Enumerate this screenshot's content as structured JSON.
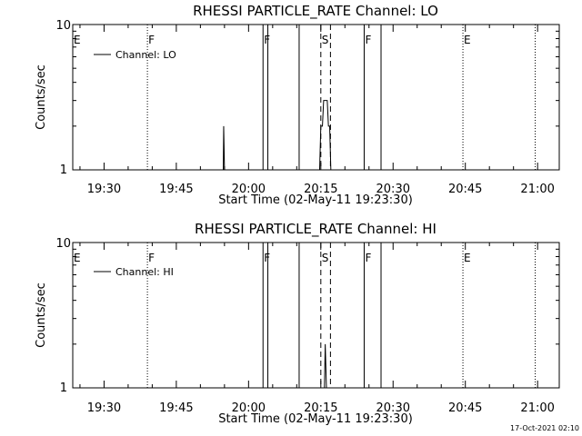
{
  "footer_timestamp": "17-Oct-2021 02:10",
  "chart_data": [
    {
      "type": "line",
      "title": "RHESSI PARTICLE_RATE Channel: LO",
      "xlabel": "Start Time (02-May-11 19:23:30)",
      "ylabel": "Counts/sec",
      "yscale": "log",
      "ylim": [
        1,
        10
      ],
      "y_ticks": [
        "1",
        "10"
      ],
      "x_ticks": [
        "19:30",
        "19:45",
        "20:00",
        "20:15",
        "20:30",
        "20:45",
        "21:00"
      ],
      "xlim": [
        "19:23:30",
        "21:04:30"
      ],
      "legend": {
        "label": "Channel: LO",
        "placement": "top-left"
      },
      "flags": [
        {
          "label": "E",
          "time": "19:23:30",
          "style": "solid"
        },
        {
          "label": "F",
          "time": "19:39:00",
          "style": "dotted"
        },
        {
          "label": "F",
          "time": "20:03:00",
          "style": "solid"
        },
        {
          "label": "S",
          "time": "20:15:00",
          "style": "dashed"
        },
        {
          "label": "F",
          "time": "20:24:00",
          "style": "solid"
        },
        {
          "label": "E",
          "time": "20:44:30",
          "style": "dotted"
        }
      ],
      "lines": [
        {
          "time": "20:04:00",
          "style": "solid"
        },
        {
          "time": "20:10:30",
          "style": "solid"
        },
        {
          "time": "20:17:00",
          "style": "dashed"
        },
        {
          "time": "20:27:30",
          "style": "solid"
        },
        {
          "time": "20:59:30",
          "style": "dotted"
        }
      ],
      "series": [
        {
          "points": [
            [
              "19:54:45",
              1
            ],
            [
              "19:54:50",
              2
            ],
            [
              "19:55:00",
              1
            ],
            [
              "20:14:45",
              1
            ],
            [
              "20:15:00",
              2
            ],
            [
              "20:15:20",
              2
            ],
            [
              "20:15:35",
              3
            ],
            [
              "20:16:20",
              3
            ],
            [
              "20:16:35",
              2
            ],
            [
              "20:16:50",
              2
            ],
            [
              "20:17:05",
              1
            ]
          ]
        }
      ]
    },
    {
      "type": "line",
      "title": "RHESSI PARTICLE_RATE Channel: HI",
      "xlabel": "Start Time (02-May-11 19:23:30)",
      "ylabel": "Counts/sec",
      "yscale": "log",
      "ylim": [
        1,
        10
      ],
      "y_ticks": [
        "1",
        "10"
      ],
      "x_ticks": [
        "19:30",
        "19:45",
        "20:00",
        "20:15",
        "20:30",
        "20:45",
        "21:00"
      ],
      "xlim": [
        "19:23:30",
        "21:04:30"
      ],
      "legend": {
        "label": "Channel: HI",
        "placement": "top-left"
      },
      "flags": [
        {
          "label": "E",
          "time": "19:23:30",
          "style": "solid"
        },
        {
          "label": "F",
          "time": "19:39:00",
          "style": "dotted"
        },
        {
          "label": "F",
          "time": "20:03:00",
          "style": "solid"
        },
        {
          "label": "S",
          "time": "20:15:00",
          "style": "dashed"
        },
        {
          "label": "F",
          "time": "20:24:00",
          "style": "solid"
        },
        {
          "label": "E",
          "time": "20:44:30",
          "style": "dotted"
        }
      ],
      "lines": [
        {
          "time": "20:04:00",
          "style": "solid"
        },
        {
          "time": "20:10:30",
          "style": "solid"
        },
        {
          "time": "20:17:00",
          "style": "dashed"
        },
        {
          "time": "20:27:30",
          "style": "solid"
        },
        {
          "time": "20:59:30",
          "style": "dotted"
        }
      ],
      "series": [
        {
          "points": [
            [
              "20:15:45",
              1
            ],
            [
              "20:15:55",
              2
            ],
            [
              "20:16:10",
              1
            ]
          ]
        }
      ]
    }
  ]
}
